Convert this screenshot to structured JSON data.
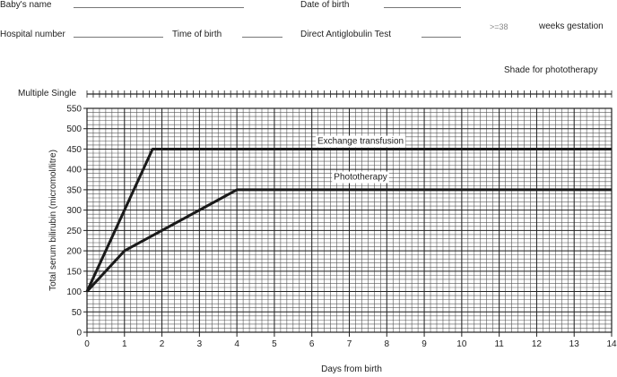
{
  "form": {
    "babys_name": "Baby's name",
    "date_of_birth": "Date of birth",
    "hospital_number": "Hospital number",
    "time_of_birth": "Time of birth",
    "direct_antiglobulin_test": "Direct Antiglobulin Test",
    "gestation_value": ">=38",
    "gestation_unit": "weeks gestation",
    "shade_note": "Shade for phototherapy"
  },
  "chart_data": {
    "type": "line",
    "xlabel": "Days from birth",
    "ylabel": "Total serum bilirubin (micromol/litre)",
    "top_label": "Multiple Single",
    "xlim": [
      0,
      14
    ],
    "ylim": [
      0,
      550
    ],
    "xticks": [
      0,
      1,
      2,
      3,
      4,
      5,
      6,
      7,
      8,
      9,
      10,
      11,
      12,
      13,
      14
    ],
    "yticks": [
      0,
      50,
      100,
      150,
      200,
      250,
      300,
      350,
      400,
      450,
      500,
      550
    ],
    "grid": true,
    "series": [
      {
        "name": "Exchange transfusion",
        "x": [
          0,
          1.75,
          14
        ],
        "y": [
          100,
          450,
          450
        ]
      },
      {
        "name": "Phototherapy",
        "x": [
          0,
          1,
          4,
          14
        ],
        "y": [
          100,
          200,
          350,
          350
        ]
      }
    ]
  }
}
